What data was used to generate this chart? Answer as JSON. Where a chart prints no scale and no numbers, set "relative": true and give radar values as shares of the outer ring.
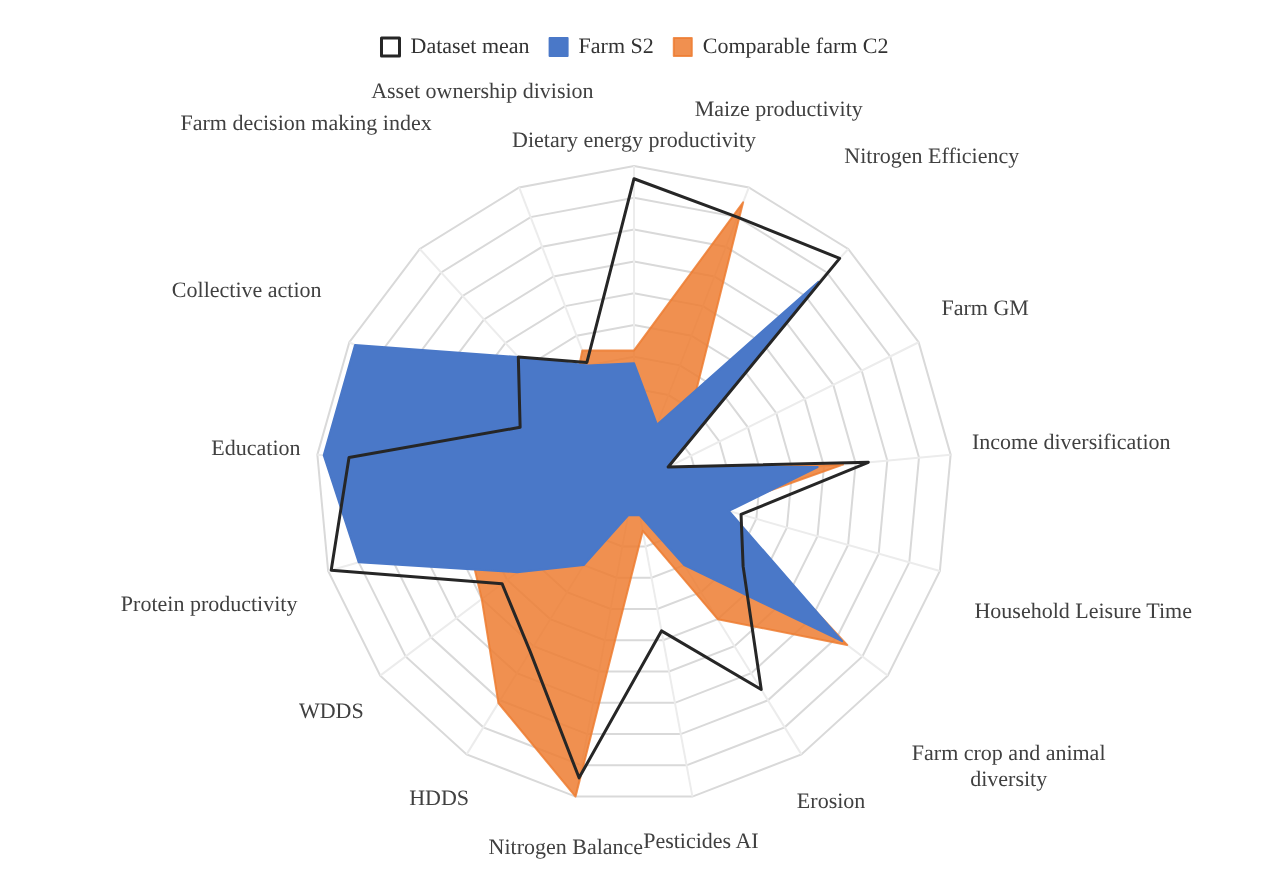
{
  "chart_data": {
    "type": "radar",
    "relative": true,
    "grid": true,
    "legend": "top",
    "marker": "none",
    "categories": [
      "Dietary energy productivity",
      "Maize productivity",
      "Nitrogen Efficiency",
      "Farm GM",
      "Income diversification",
      "Household Leisure Time",
      "Farm crop and animal diversity",
      "Erosion",
      "Pesticides AI",
      "Nitrogen Balance",
      "HDDS",
      "WDDS",
      "Protein productivity",
      "Education",
      "Collective action",
      "Farm decision making index",
      "Asset ownership division"
    ],
    "series": [
      {
        "name": "Dataset mean",
        "color": "#262626",
        "values": [
          0.96,
          0.9,
          0.96,
          0.12,
          0.74,
          0.35,
          0.43,
          0.76,
          0.47,
          0.94,
          0.62,
          0.52,
          0.99,
          0.9,
          0.4,
          0.54,
          0.41
        ]
      },
      {
        "name": "Farm S2",
        "color": "#4a78c8",
        "values": [
          0.38,
          0.2,
          0.86,
          0.12,
          0.58,
          0.31,
          0.82,
          0.3,
          0.1,
          0.1,
          0.3,
          0.46,
          0.9,
          0.98,
          0.98,
          0.54,
          0.4
        ]
      },
      {
        "name": "Comparable farm C2",
        "color": "#ed7d31",
        "values": [
          0.42,
          0.95,
          0.25,
          0.1,
          0.66,
          0.28,
          0.84,
          0.5,
          0.15,
          1.0,
          0.81,
          0.6,
          0.55,
          0.57,
          0.35,
          0.3,
          0.45
        ]
      }
    ]
  }
}
